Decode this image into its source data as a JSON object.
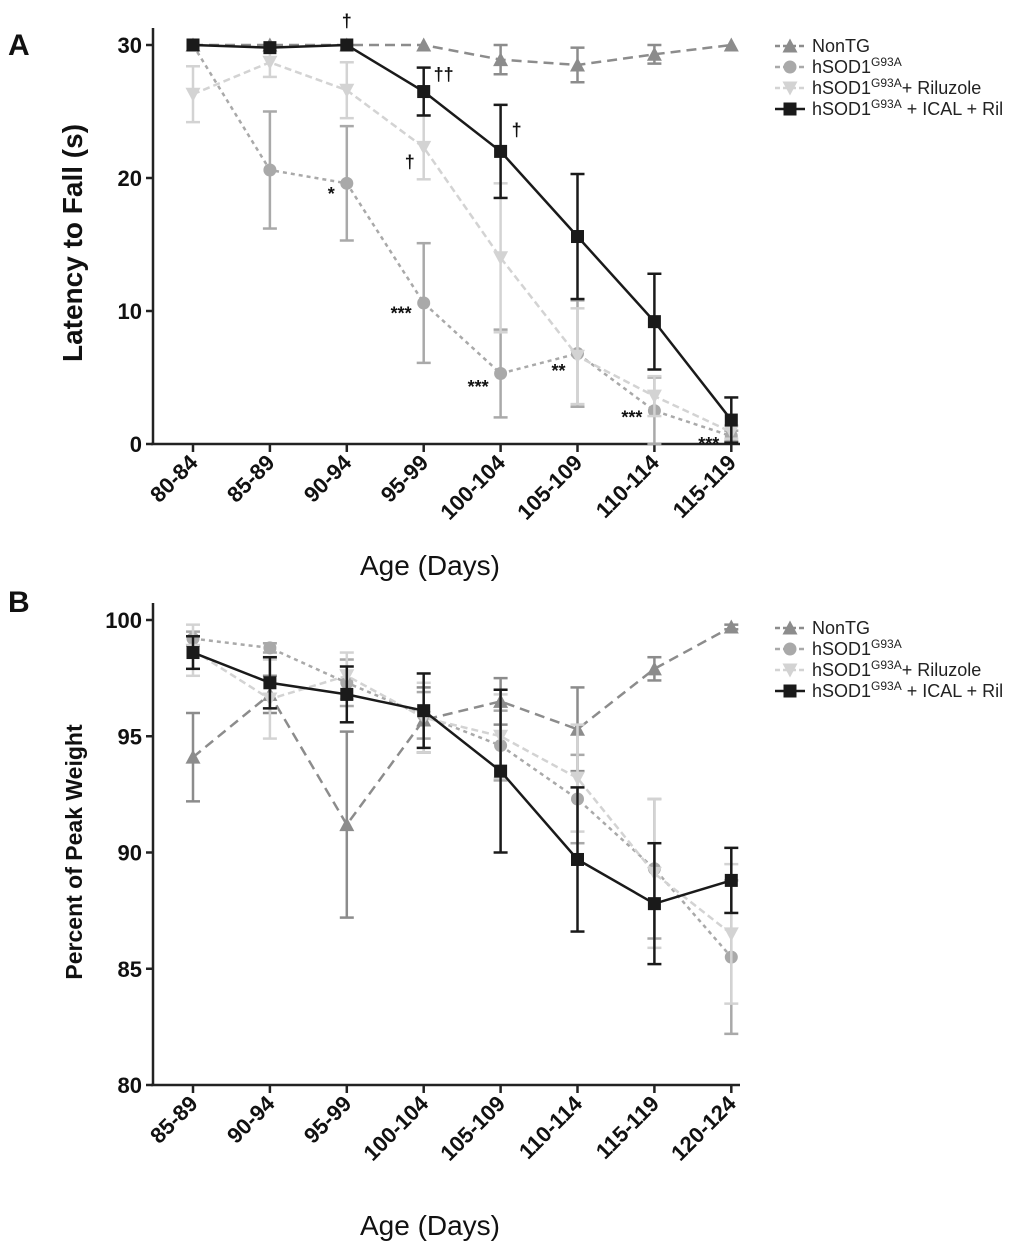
{
  "chart_data": [
    {
      "panel": "A",
      "type": "line",
      "ylabel": "Latency to Fall (s)",
      "xlabel": "Age (Days)",
      "categories": [
        "80-84",
        "85-89",
        "90-94",
        "95-99",
        "100-104",
        "105-109",
        "110-114",
        "115-119"
      ],
      "ylim": [
        0,
        30
      ],
      "yticks": [
        "0",
        "10",
        "20",
        "30"
      ],
      "legend_position": "top-right",
      "grid": false,
      "series": [
        {
          "name": "NonTG",
          "name_main": "NonTG",
          "name_sup": "",
          "name_tail": "",
          "marker": "triangle",
          "color": "#8c8c8c",
          "dash": "10,6",
          "values": [
            30,
            30,
            30,
            30,
            28.9,
            28.5,
            29.3,
            30
          ],
          "err": [
            0,
            0,
            0,
            0,
            1.1,
            1.3,
            0.7,
            0
          ]
        },
        {
          "name": "hSOD1G93A",
          "name_main": "hSOD1",
          "name_sup": "G93A",
          "name_tail": "",
          "marker": "circle",
          "color": "#a9a9a9",
          "dash": "4,4",
          "values": [
            30,
            20.6,
            19.6,
            10.6,
            5.3,
            6.8,
            2.5,
            0.6
          ],
          "err": [
            0,
            4.4,
            4.3,
            4.5,
            3.3,
            4.0,
            2.5,
            0.4
          ]
        },
        {
          "name": "hSOD1G93A+ Riluzole",
          "name_main": "hSOD1",
          "name_sup": "G93A",
          "name_tail": "+ Riluzole",
          "marker": "triangle-down",
          "color": "#d3d3d3",
          "dash": "7,4",
          "values": [
            26.3,
            28.7,
            26.6,
            22.3,
            14.0,
            6.6,
            3.6,
            0.9
          ],
          "err": [
            2.1,
            1.1,
            2.1,
            2.4,
            5.6,
            3.6,
            1.5,
            0.5
          ]
        },
        {
          "name": "hSOD1G93A + ICAL + Ril",
          "name_main": "hSOD1",
          "name_sup": "G93A",
          "name_tail": " + ICAL + Ril",
          "marker": "square",
          "color": "#1a1a1a",
          "dash": "",
          "values": [
            30,
            29.8,
            30,
            26.5,
            22.0,
            15.6,
            9.2,
            1.8
          ],
          "err": [
            0,
            0,
            0,
            1.8,
            3.5,
            4.7,
            3.6,
            1.7
          ]
        }
      ],
      "annotations": [
        {
          "text": "†",
          "x": "90-94",
          "y": 31.8
        },
        {
          "text": "††",
          "x": "95-99",
          "y": 27.8
        },
        {
          "text": "†",
          "x": "100-104",
          "y": 23.6
        },
        {
          "text": "†",
          "x": "95-99",
          "y": 21.2
        },
        {
          "text": "*",
          "x": "90-94",
          "y": 18.8
        },
        {
          "text": "***",
          "x": "95-99",
          "y": 9.8
        },
        {
          "text": "***",
          "x": "100-104",
          "y": 4.3
        },
        {
          "text": "**",
          "x": "105-109",
          "y": 5.5
        },
        {
          "text": "***",
          "x": "110-114",
          "y": 2.0
        },
        {
          "text": "***",
          "x": "115-119",
          "y": 0.0
        }
      ]
    },
    {
      "panel": "B",
      "type": "line",
      "ylabel": "Percent of Peak Weight",
      "xlabel": "Age (Days)",
      "categories": [
        "85-89",
        "90-94",
        "95-99",
        "100-104",
        "105-109",
        "110-114",
        "115-119",
        "120-124"
      ],
      "ylim": [
        80,
        100
      ],
      "yticks": [
        "80",
        "85",
        "90",
        "95",
        "100"
      ],
      "legend_position": "top-right",
      "grid": false,
      "series": [
        {
          "name": "NonTG",
          "name_main": "NonTG",
          "name_sup": "",
          "name_tail": "",
          "marker": "triangle",
          "color": "#8c8c8c",
          "dash": "10,6",
          "values": [
            94.1,
            96.8,
            91.2,
            95.7,
            96.5,
            95.3,
            97.9,
            99.7
          ],
          "err": [
            1.9,
            0.8,
            4.0,
            1.4,
            1.0,
            1.8,
            0.5,
            0.1
          ]
        },
        {
          "name": "hSOD1G93A",
          "name_main": "hSOD1",
          "name_sup": "G93A",
          "name_tail": "",
          "marker": "circle",
          "color": "#a9a9a9",
          "dash": "4,4",
          "values": [
            99.2,
            98.8,
            97.3,
            95.9,
            94.6,
            92.3,
            89.3,
            85.5
          ],
          "err": [
            0.3,
            0.2,
            1.0,
            1.0,
            1.5,
            1.9,
            3.0,
            3.3
          ]
        },
        {
          "name": "hSOD1G93A+ Riluzole",
          "name_main": "hSOD1",
          "name_sup": "G93A",
          "name_tail": "+ Riluzole",
          "marker": "triangle-down",
          "color": "#d3d3d3",
          "dash": "7,4",
          "values": [
            98.7,
            96.6,
            97.6,
            95.8,
            95.0,
            93.2,
            89.1,
            86.5
          ],
          "err": [
            1.1,
            1.7,
            1.0,
            1.5,
            1.8,
            2.3,
            3.2,
            3.0
          ]
        },
        {
          "name": "hSOD1G93A + ICAL + Ril",
          "name_main": "hSOD1",
          "name_sup": "G93A",
          "name_tail": " + ICAL + Ril",
          "marker": "square",
          "color": "#1a1a1a",
          "dash": "",
          "values": [
            98.6,
            97.3,
            96.8,
            96.1,
            93.5,
            89.7,
            87.8,
            88.8
          ],
          "err": [
            0.7,
            1.1,
            1.2,
            1.6,
            3.5,
            3.1,
            2.6,
            1.4
          ]
        }
      ],
      "annotations": []
    }
  ]
}
